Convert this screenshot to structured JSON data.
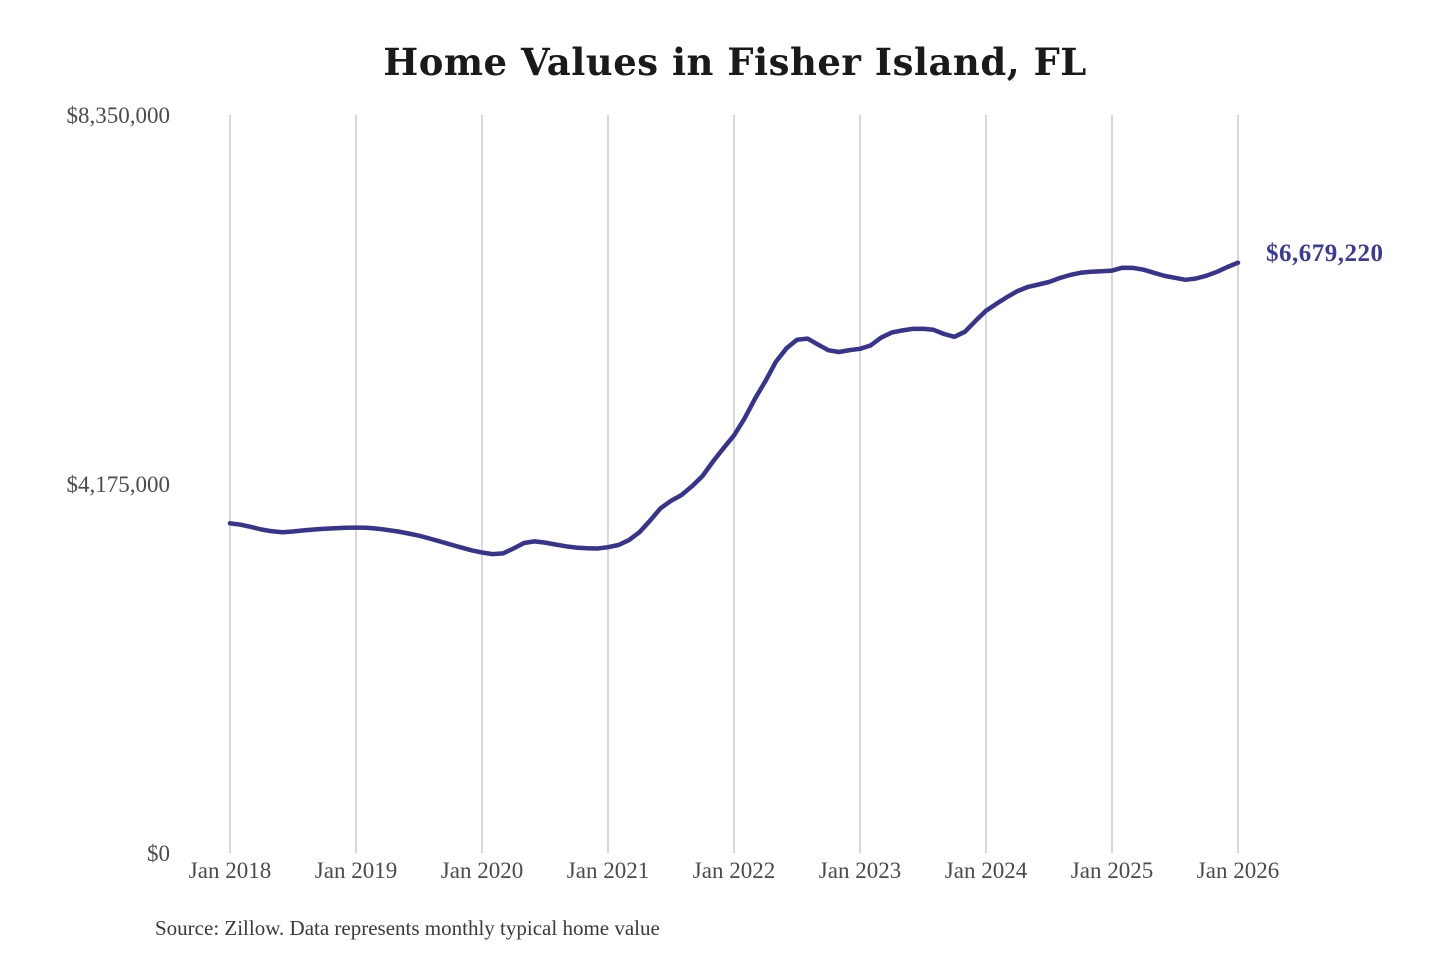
{
  "title": "Home Values in Fisher Island, FL",
  "end_label": "$6,679,220",
  "source_note": "Source: Zillow. Data represents monthly typical home value",
  "colors": {
    "line": "#38338c",
    "end_label": "#3b3a99",
    "grid": "#cccccc",
    "axis_text": "#4b4b4b",
    "title_text": "#1a1a1a",
    "source_text": "#3a3a3a",
    "background": "#ffffff"
  },
  "chart_data": {
    "type": "line",
    "title": "Home Values in Fisher Island, FL",
    "xlabel": "",
    "ylabel": "",
    "ylim": [
      0,
      8350000
    ],
    "grid": "vertical-only",
    "legend": false,
    "y_ticks": [
      {
        "label": "$0",
        "value": 0
      },
      {
        "label": "$4,175,000",
        "value": 4175000
      },
      {
        "label": "$8,350,000",
        "value": 8350000
      }
    ],
    "x_ticks": [
      {
        "label": "Jan 2018",
        "month_index": 0
      },
      {
        "label": "Jan 2019",
        "month_index": 12
      },
      {
        "label": "Jan 2020",
        "month_index": 24
      },
      {
        "label": "Jan 2021",
        "month_index": 36
      },
      {
        "label": "Jan 2022",
        "month_index": 48
      },
      {
        "label": "Jan 2023",
        "month_index": 60
      },
      {
        "label": "Jan 2024",
        "month_index": 72
      },
      {
        "label": "Jan 2025",
        "month_index": 84
      },
      {
        "label": "Jan 2026",
        "month_index": 96
      }
    ],
    "series": [
      {
        "name": "Monthly typical home value",
        "x_start": "2018-01",
        "x_end": "2026-01",
        "frequency": "monthly",
        "end_value": 6679220,
        "values": [
          3730000,
          3715000,
          3690000,
          3660000,
          3640000,
          3630000,
          3638000,
          3650000,
          3660000,
          3668000,
          3675000,
          3680000,
          3682000,
          3680000,
          3670000,
          3655000,
          3638000,
          3615000,
          3590000,
          3558000,
          3525000,
          3490000,
          3458000,
          3425000,
          3400000,
          3382000,
          3390000,
          3445000,
          3508000,
          3525000,
          3512000,
          3490000,
          3470000,
          3455000,
          3447000,
          3445000,
          3460000,
          3485000,
          3540000,
          3630000,
          3760000,
          3900000,
          3985000,
          4050000,
          4150000,
          4265000,
          4430000,
          4580000,
          4725000,
          4915000,
          5140000,
          5340000,
          5560000,
          5710000,
          5808000,
          5820000,
          5752000,
          5688000,
          5668000,
          5690000,
          5705000,
          5742000,
          5830000,
          5888000,
          5912000,
          5930000,
          5932000,
          5920000,
          5872000,
          5840000,
          5898000,
          6020000,
          6135000,
          6215000,
          6290000,
          6358000,
          6405000,
          6432000,
          6460000,
          6505000,
          6540000,
          6565000,
          6576000,
          6582000,
          6590000,
          6622000,
          6620000,
          6600000,
          6565000,
          6530000,
          6508000,
          6485000,
          6500000,
          6532000,
          6576000,
          6630000,
          6679220
        ]
      }
    ]
  }
}
